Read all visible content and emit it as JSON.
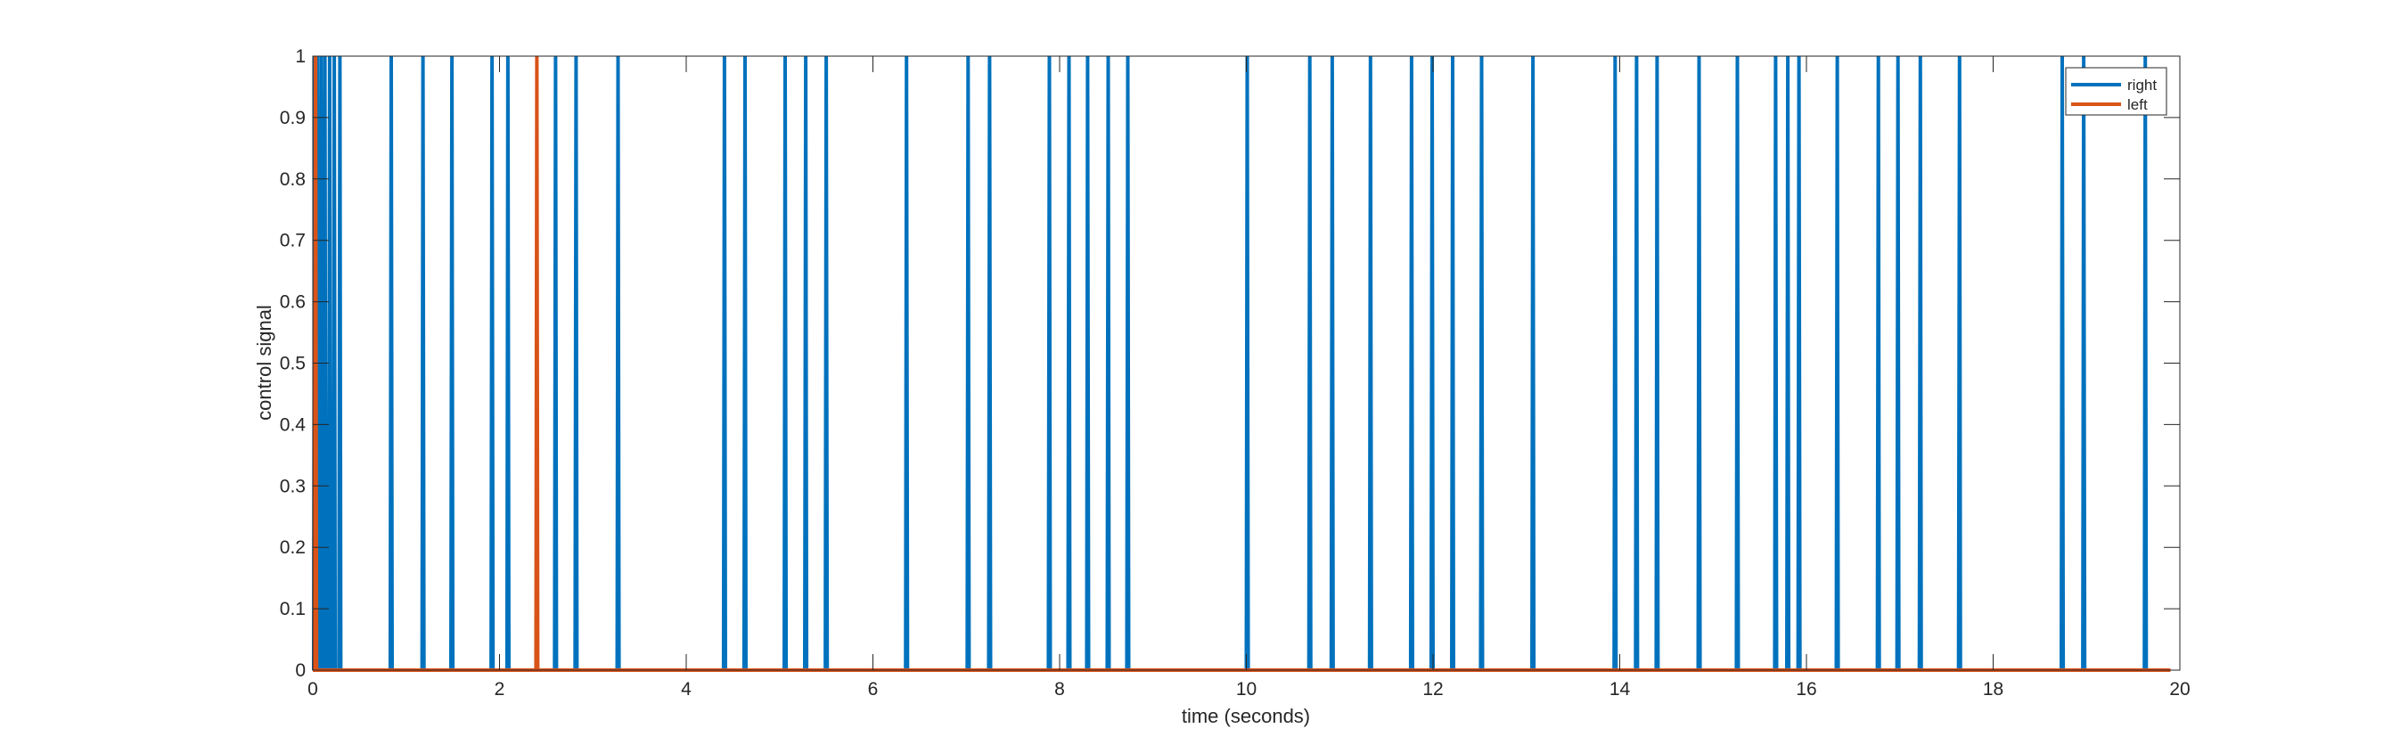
{
  "chart_data": {
    "type": "line",
    "title": "",
    "xlabel": "time (seconds)",
    "ylabel": "control signal",
    "xlim": [
      0,
      20
    ],
    "ylim": [
      0,
      1
    ],
    "xticks": [
      0,
      2,
      4,
      6,
      8,
      10,
      12,
      14,
      16,
      18,
      20
    ],
    "yticks": [
      0,
      0.1,
      0.2,
      0.3,
      0.4,
      0.5,
      0.6,
      0.7,
      0.8,
      0.9,
      1
    ],
    "grid": false,
    "legend_position": "top-right",
    "series": [
      {
        "name": "right",
        "color": "#0072BD",
        "pulse_times": [
          0.02,
          0.05,
          0.09,
          0.13,
          0.18,
          0.23,
          0.29,
          0.84,
          1.18,
          1.49,
          1.92,
          2.09,
          2.6,
          2.82,
          3.27,
          4.41,
          4.63,
          5.06,
          5.28,
          5.5,
          6.36,
          7.02,
          7.25,
          7.89,
          8.1,
          8.3,
          8.52,
          8.73,
          10.01,
          10.68,
          10.92,
          11.33,
          11.77,
          11.99,
          12.21,
          12.52,
          13.07,
          13.95,
          14.18,
          14.4,
          14.85,
          15.26,
          15.67,
          15.8,
          15.92,
          16.33,
          16.77,
          16.98,
          17.22,
          17.64,
          18.74,
          18.97,
          19.63
        ],
        "pulse_value": 1,
        "baseline": 0
      },
      {
        "name": "left",
        "color": "#D95319",
        "pulse_times": [
          0.03,
          2.4
        ],
        "pulse_value": 1,
        "baseline": 0
      }
    ]
  }
}
